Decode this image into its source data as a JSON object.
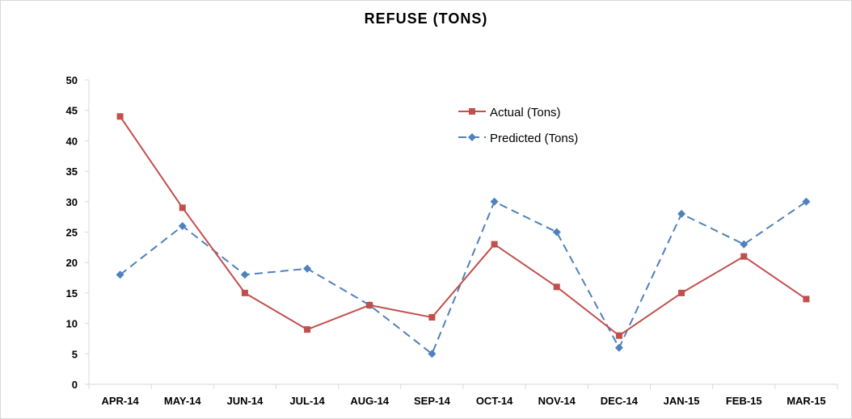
{
  "chart_data": {
    "type": "line",
    "title": "REFUSE (TONS)",
    "xlabel": "",
    "ylabel": "",
    "categories": [
      "APR-14",
      "MAY-14",
      "JUN-14",
      "JUL-14",
      "AUG-14",
      "SEP-14",
      "OCT-14",
      "NOV-14",
      "DEC-14",
      "JAN-15",
      "FEB-15",
      "MAR-15"
    ],
    "ylim": [
      0,
      50
    ],
    "yticks": [
      0,
      5,
      10,
      15,
      20,
      25,
      30,
      35,
      40,
      45,
      50
    ],
    "grid": false,
    "legend_position": "upper-center",
    "series": [
      {
        "name": "Actual (Tons)",
        "values": [
          44,
          29,
          15,
          9,
          13,
          11,
          23,
          16,
          8,
          15,
          21,
          14
        ],
        "color": "#c0504d",
        "marker": "square",
        "line_style": "solid"
      },
      {
        "name": "Predicted (Tons)",
        "values": [
          18,
          26,
          18,
          19,
          13,
          5,
          30,
          25,
          6,
          28,
          23,
          30
        ],
        "color": "#4f81bd",
        "marker": "diamond",
        "line_style": "dashed"
      }
    ]
  }
}
